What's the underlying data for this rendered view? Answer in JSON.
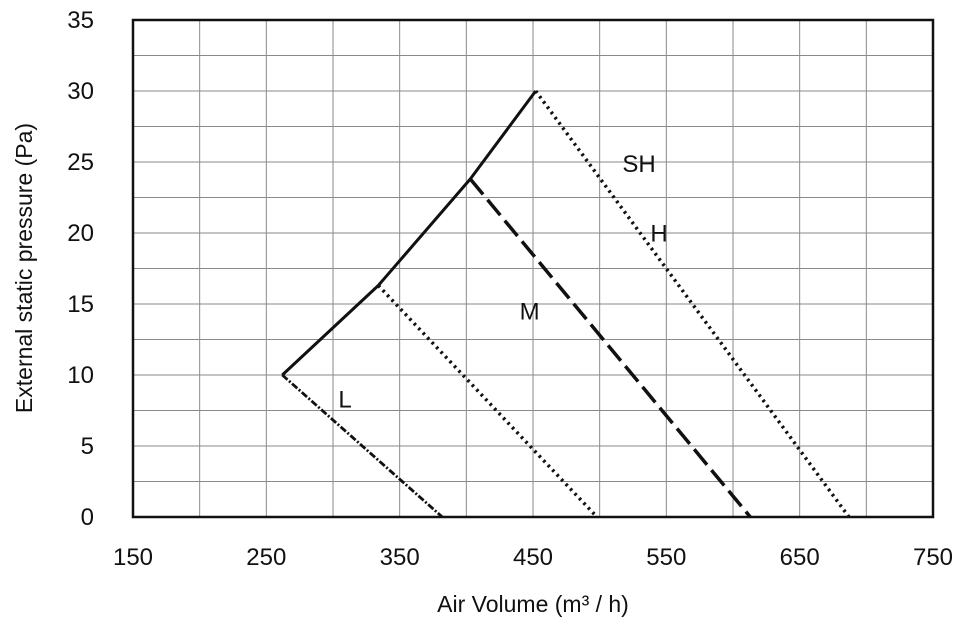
{
  "chart_data": {
    "type": "line",
    "xlabel": "Air Volume (m³ / h)",
    "ylabel": "External static pressure (Pa)",
    "xlim": [
      150,
      750
    ],
    "ylim": [
      0,
      35
    ],
    "x_ticks": [
      "150",
      "250",
      "350",
      "450",
      "550",
      "650",
      "750"
    ],
    "y_ticks": [
      "0",
      "5",
      "10",
      "15",
      "20",
      "25",
      "30",
      "35"
    ],
    "grid": true,
    "series": [
      {
        "name": "L",
        "style": "dash-dot",
        "points": [
          [
            262,
            10
          ],
          [
            382,
            0
          ]
        ]
      },
      {
        "name": "M",
        "style": "dotted",
        "points": [
          [
            334,
            16.3
          ],
          [
            498,
            0
          ]
        ]
      },
      {
        "name": "H",
        "style": "dashed",
        "points": [
          [
            403,
            23.8
          ],
          [
            613,
            0
          ]
        ]
      },
      {
        "name": "SH",
        "style": "dotted",
        "points": [
          [
            452,
            30
          ],
          [
            687,
            0
          ]
        ]
      },
      {
        "name": "",
        "style": "solid",
        "points": [
          [
            262,
            10
          ],
          [
            334,
            16.3
          ],
          [
            403,
            23.8
          ],
          [
            452,
            30
          ]
        ]
      }
    ]
  }
}
